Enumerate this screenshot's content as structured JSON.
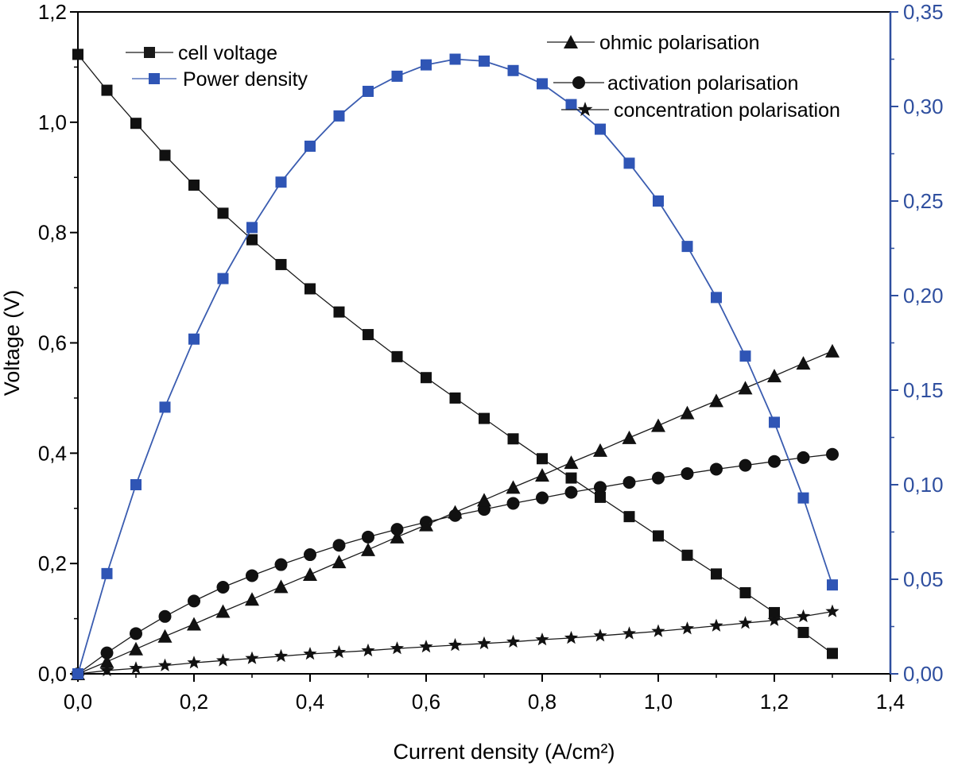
{
  "colors": {
    "axis": "#000000",
    "right_axis": "#2f4f9f",
    "cell_voltage": "#1a1a1a",
    "power_density": "#3a5cb0",
    "power_marker": "#2f55b5"
  },
  "chart_data": {
    "type": "line",
    "title": "",
    "xlabel": "Current density (A/cm²)",
    "ylabel": "Voltage (V)",
    "xlim": [
      0,
      1.4
    ],
    "ylim": [
      0,
      1.2
    ],
    "y2lim": [
      0,
      0.35
    ],
    "x_ticks": [
      "0,0",
      "0,2",
      "0,4",
      "0,6",
      "0,8",
      "1,0",
      "1,2",
      "1,4"
    ],
    "y_ticks": [
      "0,0",
      "0,2",
      "0,4",
      "0,6",
      "0,8",
      "1,0",
      "1,2"
    ],
    "y2_ticks": [
      "0,00",
      "0,05",
      "0,10",
      "0,15",
      "0,20",
      "0,25",
      "0,30",
      "0,35"
    ],
    "x": [
      0,
      0.05,
      0.1,
      0.15,
      0.2,
      0.25,
      0.3,
      0.35,
      0.4,
      0.45,
      0.5,
      0.55,
      0.6,
      0.65,
      0.7,
      0.75,
      0.8,
      0.85,
      0.9,
      0.95,
      1.0,
      1.05,
      1.1,
      1.15,
      1.2,
      1.25,
      1.3
    ],
    "grid": false,
    "legend_placement": "top",
    "series": [
      {
        "name": "cell voltage",
        "axis": "left",
        "marker": "square",
        "values": [
          1.123,
          1.058,
          0.998,
          0.94,
          0.886,
          0.835,
          0.787,
          0.742,
          0.698,
          0.656,
          0.615,
          0.575,
          0.537,
          0.5,
          0.463,
          0.426,
          0.39,
          0.355,
          0.32,
          0.285,
          0.25,
          0.215,
          0.181,
          0.147,
          0.111,
          0.075,
          0.037
        ]
      },
      {
        "name": "Power density",
        "axis": "right",
        "marker": "square",
        "values": [
          0.0,
          0.053,
          0.1,
          0.141,
          0.177,
          0.209,
          0.236,
          0.26,
          0.279,
          0.295,
          0.308,
          0.316,
          0.322,
          0.325,
          0.324,
          0.319,
          0.312,
          0.301,
          0.288,
          0.27,
          0.25,
          0.226,
          0.199,
          0.168,
          0.133,
          0.093,
          0.047
        ]
      },
      {
        "name": "ohmic polarisation",
        "axis": "left",
        "marker": "triangle",
        "values": [
          0.0,
          0.022,
          0.045,
          0.068,
          0.09,
          0.113,
          0.135,
          0.158,
          0.18,
          0.203,
          0.225,
          0.248,
          0.27,
          0.293,
          0.315,
          0.338,
          0.36,
          0.383,
          0.405,
          0.428,
          0.45,
          0.473,
          0.495,
          0.518,
          0.54,
          0.563,
          0.585
        ]
      },
      {
        "name": "activation polarisation",
        "axis": "left",
        "marker": "circle",
        "values": [
          0.0,
          0.038,
          0.073,
          0.104,
          0.132,
          0.157,
          0.178,
          0.198,
          0.216,
          0.233,
          0.248,
          0.262,
          0.275,
          0.287,
          0.298,
          0.309,
          0.319,
          0.329,
          0.338,
          0.347,
          0.355,
          0.363,
          0.371,
          0.378,
          0.385,
          0.392,
          0.398
        ]
      },
      {
        "name": "concentration polarisation",
        "axis": "left",
        "marker": "star",
        "values": [
          0.0,
          0.006,
          0.01,
          0.015,
          0.02,
          0.024,
          0.028,
          0.032,
          0.036,
          0.039,
          0.042,
          0.046,
          0.049,
          0.052,
          0.055,
          0.058,
          0.062,
          0.065,
          0.069,
          0.073,
          0.077,
          0.082,
          0.087,
          0.092,
          0.097,
          0.104,
          0.113
        ]
      }
    ]
  }
}
